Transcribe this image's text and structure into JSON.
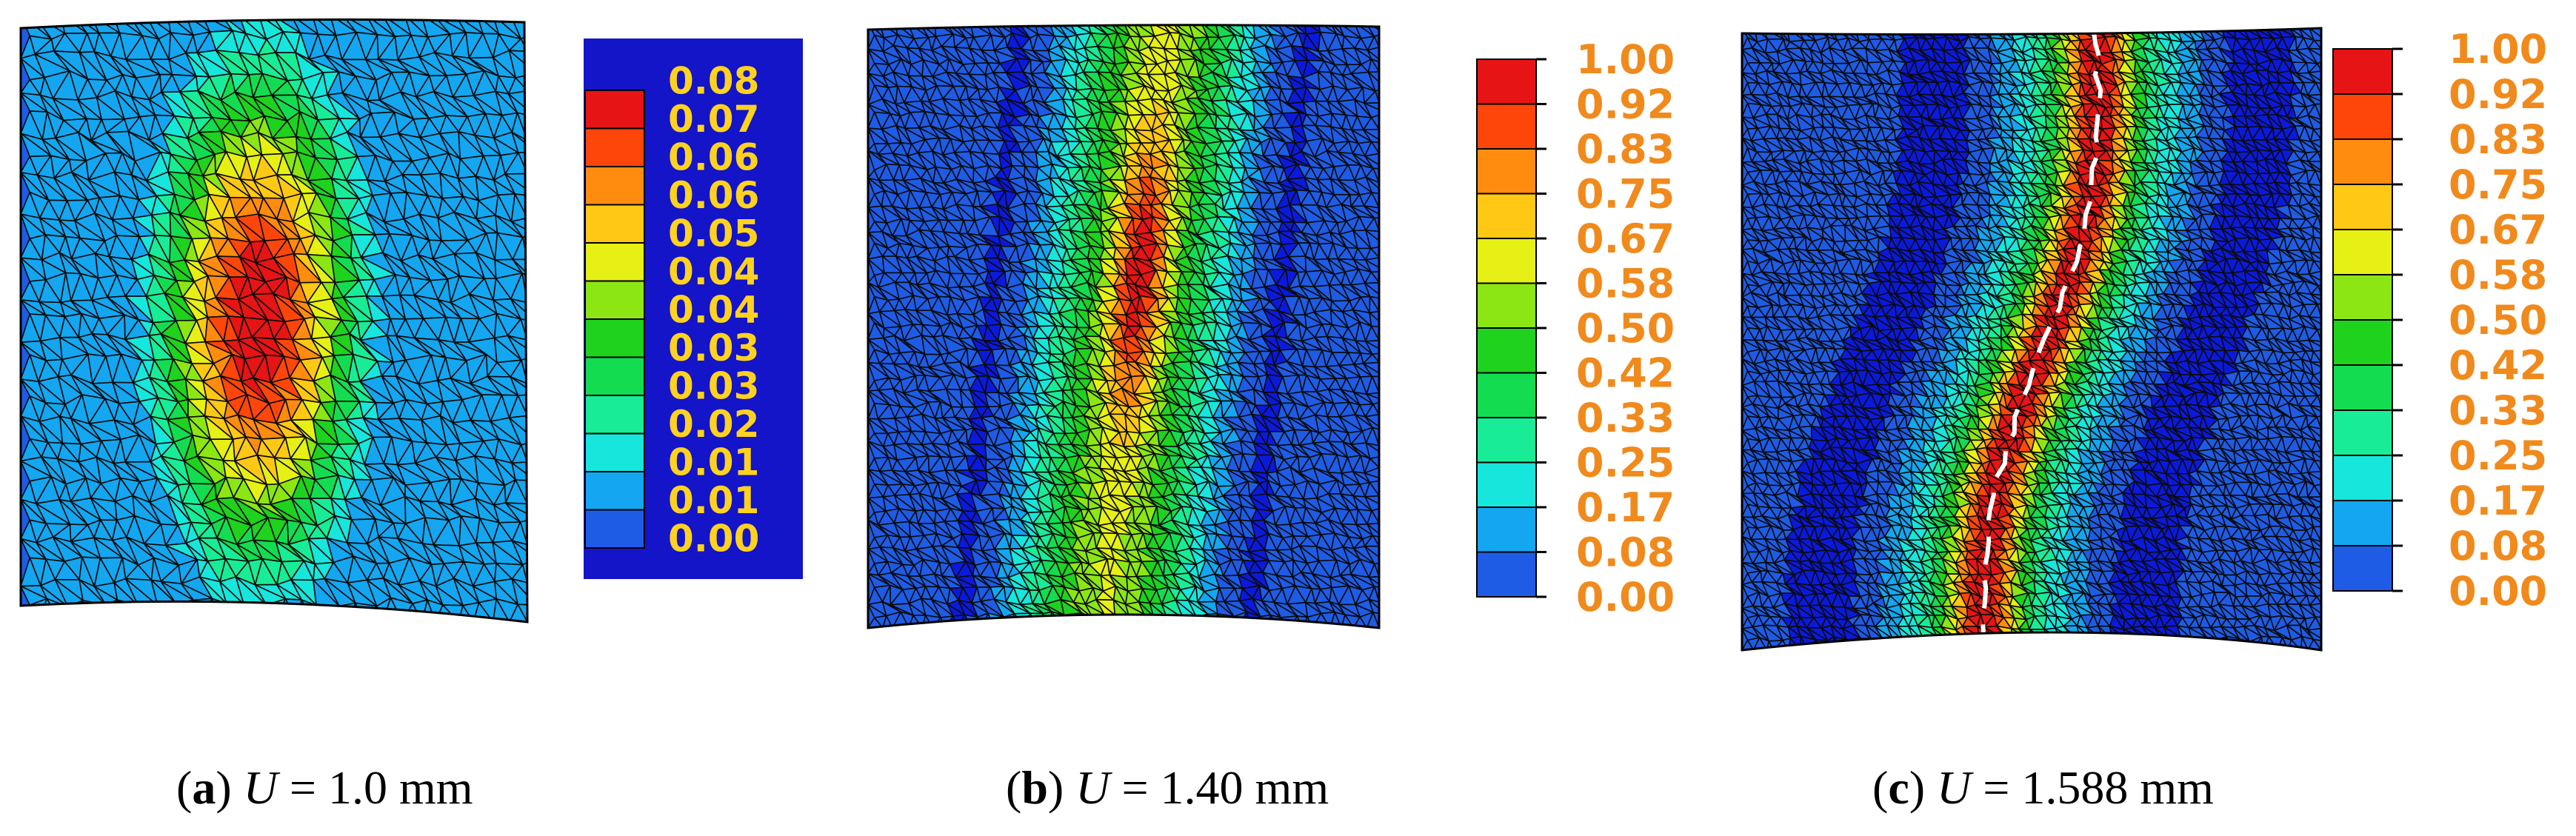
{
  "panels": [
    {
      "letter": "a",
      "variable": "U",
      "value_text": "= 1.0 mm",
      "legend": [
        "0.08",
        "0.07",
        "0.06",
        "0.06",
        "0.05",
        "0.04",
        "0.04",
        "0.03",
        "0.03",
        "0.02",
        "0.01",
        "0.01",
        "0.00"
      ],
      "field": "single-hotspot"
    },
    {
      "letter": "b",
      "variable": "U",
      "value_text": "= 1.40 mm",
      "legend": [
        "1.00",
        "0.92",
        "0.83",
        "0.75",
        "0.67",
        "0.58",
        "0.50",
        "0.42",
        "0.33",
        "0.25",
        "0.17",
        "0.08",
        "0.00"
      ],
      "field": "narrow-band"
    },
    {
      "letter": "c",
      "variable": "U",
      "value_text": "= 1.588 mm",
      "legend": [
        "1.00",
        "0.92",
        "0.83",
        "0.75",
        "0.67",
        "0.58",
        "0.50",
        "0.42",
        "0.33",
        "0.25",
        "0.17",
        "0.08",
        "0.00"
      ],
      "field": "crack-band"
    }
  ],
  "colors": {
    "contour_low_to_high": [
      "#0a1adc",
      "#1e5ce6",
      "#14a6f0",
      "#17e6dc",
      "#19ec96",
      "#14dc50",
      "#1ed21e",
      "#8ce614",
      "#e6f014",
      "#ffc814",
      "#ff8c0f",
      "#ff460a",
      "#e61414"
    ],
    "legend_a_background": "#1414c8",
    "legend_a_text": "#ffd21f",
    "legend_bc_text": "#f08a1c",
    "crack": "#ffffff"
  }
}
